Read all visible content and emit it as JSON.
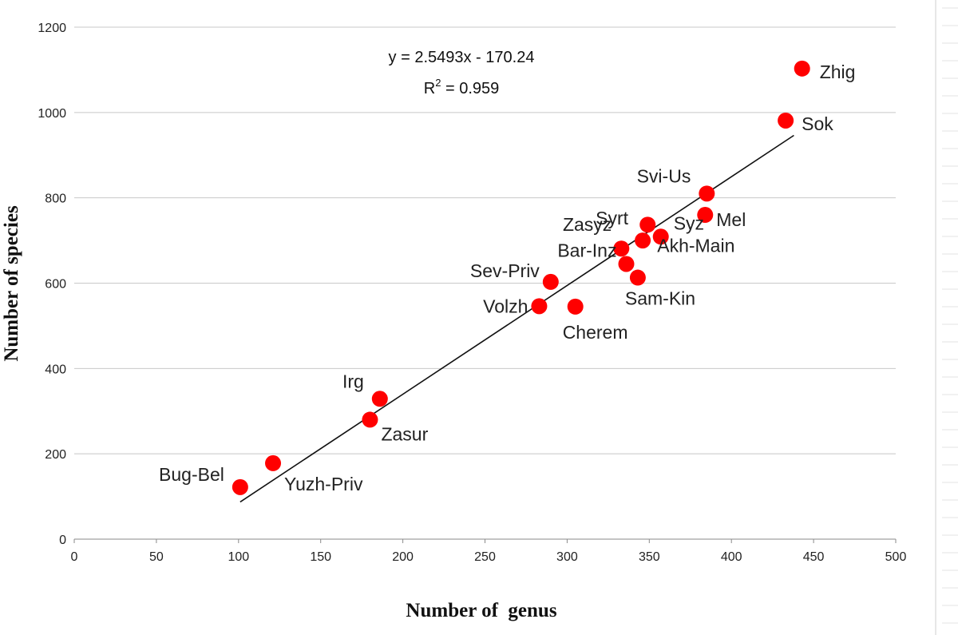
{
  "chart_data": {
    "type": "scatter",
    "xlabel": "Number of  genus",
    "ylabel": "Number of species",
    "xlim": [
      0,
      500
    ],
    "ylim": [
      0,
      1200
    ],
    "x_ticks": [
      "0",
      "50",
      "100",
      "150",
      "200",
      "250",
      "300",
      "350",
      "400",
      "450",
      "500"
    ],
    "y_ticks": [
      "0",
      "200",
      "400",
      "600",
      "800",
      "1000",
      "1200"
    ],
    "grid": "horizontal",
    "point_color": "#ff0000",
    "trendline": {
      "equation": "y = 2.5493x - 170.24",
      "r2_prefix": "R",
      "r2_sup": "2",
      "r2_value": " = 0.959",
      "slope": 2.5493,
      "intercept": -170.24,
      "x_range": [
        101,
        438
      ]
    },
    "points": [
      {
        "label": "Bug-Bel",
        "x": 101,
        "y": 122
      },
      {
        "label": "Yuzh-Priv",
        "x": 121,
        "y": 178
      },
      {
        "label": "Zasur",
        "x": 180,
        "y": 280
      },
      {
        "label": "Irg",
        "x": 186,
        "y": 329
      },
      {
        "label": "Volzh",
        "x": 283,
        "y": 546
      },
      {
        "label": "Sev-Priv",
        "x": 290,
        "y": 603
      },
      {
        "label": "Cherem",
        "x": 305,
        "y": 545
      },
      {
        "label": "Zasyz",
        "x": 333,
        "y": 681
      },
      {
        "label": "Bar-Inz",
        "x": 336,
        "y": 645
      },
      {
        "label": "Sam-Kin",
        "x": 343,
        "y": 613
      },
      {
        "label": "Syrt",
        "x": 346,
        "y": 700
      },
      {
        "label": "Akh-Main",
        "x": 349,
        "y": 737
      },
      {
        "label": "Syz",
        "x": 357,
        "y": 709
      },
      {
        "label": "Mel",
        "x": 384,
        "y": 760
      },
      {
        "label": "Svi-Us",
        "x": 385,
        "y": 810
      },
      {
        "label": "Sok",
        "x": 433,
        "y": 981
      },
      {
        "label": "Zhig",
        "x": 443,
        "y": 1103
      }
    ]
  }
}
